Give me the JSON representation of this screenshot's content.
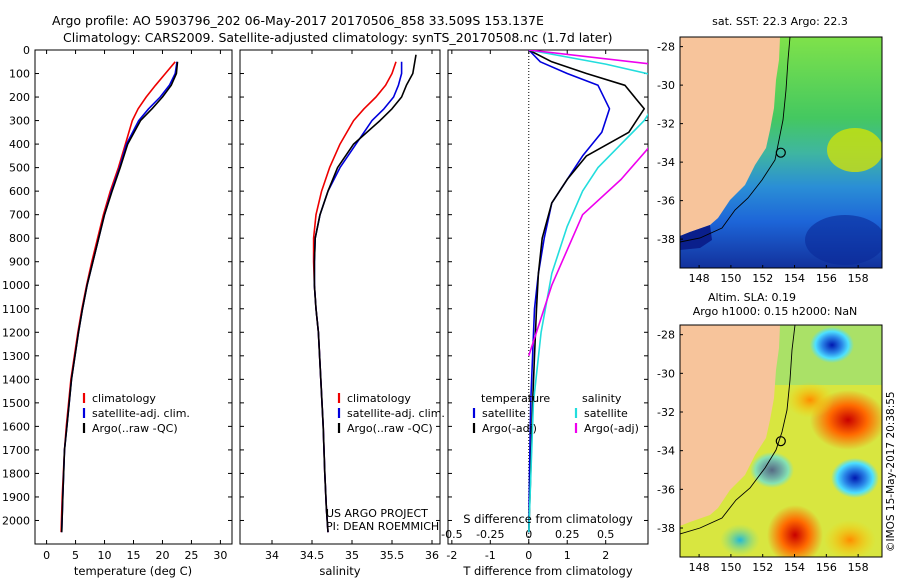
{
  "header": {
    "title": "Argo profile: AO 5903796_202 06-May-2017 20170506_858 33.509S 153.137E",
    "subtitle": "Climatology: CARS2009. Satellite-adjusted climatology: synTS_20170508.nc (1.7d later)"
  },
  "watermark": "©IMOS 15-May-2017 20:38:55",
  "colors": {
    "climatology": "#ee0000",
    "satellite": "#0000dd",
    "argo": "#000000",
    "sat_salinity": "#22dddd",
    "argo_salinity": "#ee00ee",
    "land": "#f7c49b"
  },
  "chart_data": [
    {
      "type": "line",
      "title": "Temperature profile",
      "xlabel": "temperature (deg C)",
      "ylabel": "",
      "xlim": [
        -2,
        32
      ],
      "ylim": [
        2100,
        0
      ],
      "xticks": [
        0,
        5,
        10,
        15,
        20,
        25,
        30
      ],
      "yticks": [
        0,
        100,
        200,
        300,
        400,
        500,
        600,
        700,
        800,
        900,
        1000,
        1100,
        1200,
        1300,
        1400,
        1500,
        1600,
        1700,
        1800,
        1900,
        2000
      ],
      "series": [
        {
          "name": "climatology",
          "color": "#ee0000",
          "x": [
            22.2,
            20.5,
            18.8,
            17.2,
            15.8,
            14.8,
            13.6,
            12.4,
            11.0,
            9.8,
            8.8,
            7.8,
            6.9,
            6.1,
            5.4,
            4.8,
            4.2,
            3.8,
            3.4,
            3.1,
            2.7,
            2.5
          ],
          "y": [
            50,
            100,
            150,
            200,
            250,
            300,
            400,
            500,
            600,
            700,
            800,
            900,
            1000,
            1100,
            1200,
            1300,
            1400,
            1500,
            1600,
            1700,
            1900,
            2050
          ]
        },
        {
          "name": "satellite-adj. clim.",
          "color": "#0000dd",
          "x": [
            22.5,
            22.2,
            21.2,
            19.6,
            17.6,
            15.9,
            13.8,
            12.6,
            11.2,
            10.0,
            9.0,
            8.0,
            7.0,
            6.2,
            5.5,
            4.9,
            4.3,
            3.9,
            3.5,
            3.1,
            2.8,
            2.6
          ],
          "y": [
            50,
            100,
            150,
            200,
            250,
            300,
            400,
            500,
            600,
            700,
            800,
            900,
            1000,
            1100,
            1200,
            1300,
            1400,
            1500,
            1600,
            1700,
            1900,
            2050
          ]
        },
        {
          "name": "Argo(..raw -QC)",
          "color": "#000000",
          "x": [
            22.6,
            22.4,
            21.5,
            20.0,
            18.2,
            16.2,
            14.0,
            12.7,
            11.3,
            10.0,
            9.0,
            8.0,
            7.0,
            6.2,
            5.5,
            4.9,
            4.3,
            3.9,
            3.5,
            3.1,
            2.8,
            2.6
          ],
          "y": [
            50,
            100,
            150,
            200,
            250,
            300,
            400,
            500,
            600,
            700,
            800,
            900,
            1000,
            1100,
            1200,
            1300,
            1400,
            1500,
            1600,
            1700,
            1900,
            2050
          ]
        }
      ],
      "legend": "bottom-right"
    },
    {
      "type": "line",
      "title": "Salinity profile",
      "xlabel": "salinity",
      "xlim": [
        33.6,
        36.1
      ],
      "ylim": [
        2100,
        0
      ],
      "xticks": [
        34,
        34.5,
        35,
        35.5,
        36
      ],
      "series": [
        {
          "name": "climatology",
          "color": "#ee0000",
          "x": [
            35.55,
            35.5,
            35.42,
            35.3,
            35.15,
            35.02,
            34.85,
            34.72,
            34.62,
            34.55,
            34.52,
            34.52,
            34.53,
            34.55,
            34.58,
            34.61,
            34.64,
            34.66,
            34.68,
            34.7
          ],
          "y": [
            50,
            100,
            150,
            200,
            250,
            300,
            400,
            500,
            600,
            700,
            800,
            900,
            1000,
            1100,
            1200,
            1400,
            1600,
            1800,
            1950,
            2050
          ]
        },
        {
          "name": "satellite-adj. clim.",
          "color": "#0000dd",
          "x": [
            35.62,
            35.62,
            35.58,
            35.52,
            35.4,
            35.25,
            35.05,
            34.85,
            34.7,
            34.6,
            34.54,
            34.53,
            34.53,
            34.55,
            34.58,
            34.61,
            34.64,
            34.66,
            34.68,
            34.7
          ],
          "y": [
            50,
            100,
            150,
            200,
            250,
            300,
            400,
            500,
            600,
            700,
            800,
            900,
            1000,
            1100,
            1200,
            1400,
            1600,
            1800,
            1950,
            2050
          ]
        },
        {
          "name": "Argo(..raw -QC)",
          "color": "#000000",
          "x": [
            35.8,
            35.76,
            35.68,
            35.62,
            35.5,
            35.35,
            35.02,
            34.82,
            34.7,
            34.6,
            34.54,
            34.53,
            34.53,
            34.55,
            34.58,
            34.61,
            34.64,
            34.66,
            34.68,
            34.7
          ],
          "y": [
            20,
            100,
            150,
            200,
            250,
            300,
            400,
            500,
            600,
            700,
            800,
            900,
            1000,
            1100,
            1200,
            1400,
            1600,
            1800,
            1950,
            2050
          ]
        }
      ],
      "legend": "bottom-right",
      "annotation": [
        "US ARGO PROJECT",
        "PI: DEAN ROEMMICH"
      ]
    },
    {
      "type": "line",
      "title": "Difference from climatology",
      "xlabel": "T difference from climatology",
      "xlabel_top": "S difference from climatology",
      "xlim": [
        -2.1,
        3.1
      ],
      "ylim": [
        2100,
        0
      ],
      "xticks": [
        -2,
        -1,
        0,
        1,
        2
      ],
      "xticks_top": [
        -0.5,
        -0.25,
        0,
        0.25,
        0.5
      ],
      "xticks_top_labels": [
        "-0.5",
        "-0.25",
        "0",
        "0.25",
        "0.5"
      ],
      "legend_headers": [
        "temperature",
        "salinity"
      ],
      "series": [
        {
          "name": "satellite",
          "group": "temperature",
          "color": "#0000dd",
          "x": [
            0.0,
            0.3,
            1.0,
            1.8,
            2.1,
            1.9,
            1.4,
            1.0,
            0.6,
            0.4,
            0.25,
            0.15,
            0.1,
            0.05,
            0.02,
            0.0
          ],
          "y": [
            0,
            50,
            100,
            150,
            250,
            350,
            450,
            550,
            650,
            800,
            950,
            1100,
            1300,
            1500,
            1800,
            2050
          ]
        },
        {
          "name": "Argo(-adj)",
          "group": "temperature",
          "color": "#000000",
          "x": [
            0.0,
            0.6,
            1.5,
            2.5,
            3.0,
            2.6,
            1.5,
            1.0,
            0.6,
            0.35,
            0.25,
            0.2,
            0.15,
            0.1,
            0.05,
            0.0
          ],
          "y": [
            0,
            50,
            100,
            150,
            250,
            350,
            450,
            550,
            650,
            800,
            950,
            1100,
            1300,
            1500,
            1800,
            2050
          ]
        },
        {
          "name": "satellite",
          "group": "salinity",
          "color": "#22dddd",
          "x": [
            0.0,
            0.5,
            0.9,
            0.85,
            0.75,
            0.6,
            0.45,
            0.35,
            0.25,
            0.15,
            0.08,
            0.03,
            0.0
          ],
          "y": [
            0,
            60,
            120,
            200,
            300,
            400,
            500,
            600,
            750,
            950,
            1200,
            1500,
            2050
          ]
        },
        {
          "name": "Argo(-adj)",
          "group": "salinity",
          "color": "#ee00ee",
          "x": [
            0.0,
            0.8,
            0.95,
            0.9,
            0.8,
            0.6,
            0.35,
            0.15,
            0.0
          ],
          "y": [
            0,
            60,
            120,
            250,
            400,
            550,
            700,
            1000,
            1300
          ]
        }
      ],
      "legend": "bottom-right"
    },
    {
      "type": "heatmap",
      "title": "sat. SST: 22.3 Argo: 22.3",
      "xlim": [
        146.8,
        159.5
      ],
      "ylim": [
        -39.5,
        -27.5
      ],
      "xticks": [
        148,
        150,
        152,
        154,
        156,
        158
      ],
      "yticks": [
        -28,
        -30,
        -32,
        -34,
        -36,
        -38
      ],
      "argo_position": {
        "lon": 153.137,
        "lat": -33.509
      }
    },
    {
      "type": "heatmap",
      "title": "Altim. SLA: 0.19",
      "subtitle": "Argo h1000: 0.15 h2000: NaN",
      "xlim": [
        146.8,
        159.5
      ],
      "ylim": [
        -39.5,
        -27.5
      ],
      "xticks": [
        148,
        150,
        152,
        154,
        156,
        158
      ],
      "yticks": [
        -28,
        -30,
        -32,
        -34,
        -36,
        -38
      ],
      "argo_position": {
        "lon": 153.137,
        "lat": -33.509
      }
    }
  ]
}
